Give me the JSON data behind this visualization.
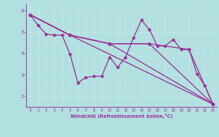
{
  "background_color": "#b2e0e0",
  "line_color": "#993399",
  "marker": "D",
  "markersize": 2.5,
  "linewidth": 1.0,
  "xlim": [
    -0.5,
    23.5
  ],
  "ylim": [
    1.5,
    6.3
  ],
  "yticks": [
    2,
    3,
    4,
    5,
    6
  ],
  "xticks": [
    0,
    1,
    2,
    3,
    4,
    5,
    6,
    7,
    8,
    9,
    10,
    11,
    12,
    13,
    14,
    15,
    16,
    17,
    18,
    19,
    20,
    21,
    22,
    23
  ],
  "xlabel": "Windchill (Refroidissement éolien,°C)",
  "grid_color": "#c8e8e8",
  "lines": [
    [
      [
        0,
        5.8
      ],
      [
        1,
        5.3
      ],
      [
        2,
        4.9
      ],
      [
        3,
        4.85
      ],
      [
        4,
        4.85
      ],
      [
        5,
        3.98
      ],
      [
        6,
        2.62
      ],
      [
        7,
        2.88
      ],
      [
        8,
        2.93
      ],
      [
        9,
        2.93
      ],
      [
        10,
        3.82
      ],
      [
        11,
        3.35
      ],
      [
        12,
        3.82
      ],
      [
        13,
        4.73
      ],
      [
        14,
        5.55
      ],
      [
        15,
        5.12
      ],
      [
        16,
        4.35
      ],
      [
        17,
        4.35
      ],
      [
        18,
        4.65
      ],
      [
        19,
        4.18
      ],
      [
        20,
        4.18
      ],
      [
        21,
        3.05
      ],
      [
        22,
        2.48
      ],
      [
        23,
        1.63
      ]
    ],
    [
      [
        0,
        5.8
      ],
      [
        5,
        4.85
      ],
      [
        10,
        4.45
      ],
      [
        15,
        4.45
      ],
      [
        20,
        4.18
      ],
      [
        23,
        1.63
      ]
    ],
    [
      [
        0,
        5.8
      ],
      [
        5,
        4.85
      ],
      [
        10,
        4.45
      ],
      [
        15,
        4.45
      ],
      [
        23,
        1.63
      ]
    ],
    [
      [
        0,
        5.8
      ],
      [
        5,
        4.85
      ],
      [
        10,
        4.45
      ],
      [
        23,
        1.63
      ]
    ],
    [
      [
        0,
        5.8
      ],
      [
        5,
        4.85
      ],
      [
        23,
        1.63
      ]
    ]
  ]
}
